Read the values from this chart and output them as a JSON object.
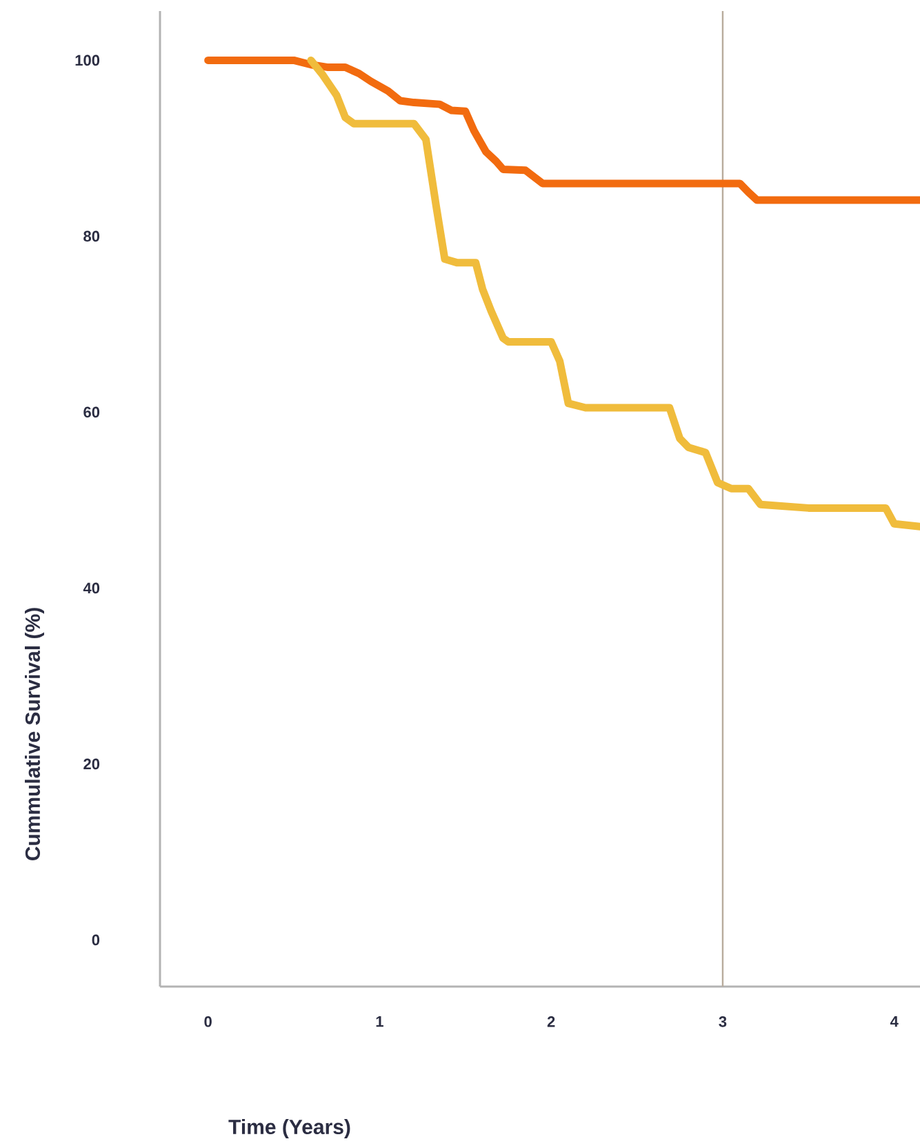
{
  "chart_data": {
    "type": "line",
    "xlabel": "Time (Years)",
    "ylabel": "Cummulative Survival (%)",
    "xlim": [
      -0.28,
      4.15
    ],
    "ylim": [
      -5.3,
      105.6
    ],
    "xticks": [
      0,
      1,
      2,
      3,
      4
    ],
    "yticks": [
      0,
      20,
      40,
      60,
      80,
      100
    ],
    "grid": false,
    "ref_lines": [
      {
        "axis": "x",
        "value": 3,
        "color": "#b8ab9c"
      }
    ],
    "series": [
      {
        "color": "#f26b0f",
        "x": [
          0,
          0.5,
          0.6,
          0.7,
          0.8,
          0.88,
          0.95,
          1.05,
          1.12,
          1.2,
          1.35,
          1.42,
          1.5,
          1.55,
          1.62,
          1.68,
          1.72,
          1.85,
          1.95,
          3.1,
          3.15,
          3.2,
          4.15
        ],
        "values": [
          100,
          100,
          99.5,
          99.2,
          99.2,
          98.5,
          97.6,
          96.5,
          95.4,
          95.2,
          95,
          94.3,
          94.2,
          92,
          89.6,
          88.5,
          87.6,
          87.5,
          86,
          86,
          85,
          84.1,
          84.1
        ]
      },
      {
        "color": "#f0bc3c",
        "x": [
          0.6,
          0.67,
          0.75,
          0.8,
          0.85,
          1.2,
          1.27,
          1.33,
          1.38,
          1.45,
          1.56,
          1.6,
          1.65,
          1.72,
          1.75,
          2.0,
          2.05,
          2.1,
          2.2,
          2.69,
          2.75,
          2.8,
          2.9,
          2.97,
          3.05,
          3.15,
          3.22,
          3.5,
          3.95,
          4.0,
          4.15
        ],
        "values": [
          100,
          98.3,
          96,
          93.5,
          92.8,
          92.8,
          91,
          83.4,
          77.4,
          77,
          77,
          74,
          71.5,
          68.4,
          68,
          68,
          65.8,
          61,
          60.5,
          60.5,
          57,
          56,
          55.4,
          52,
          51.3,
          51.3,
          49.5,
          49.1,
          49.1,
          47.3,
          47
        ]
      }
    ]
  }
}
